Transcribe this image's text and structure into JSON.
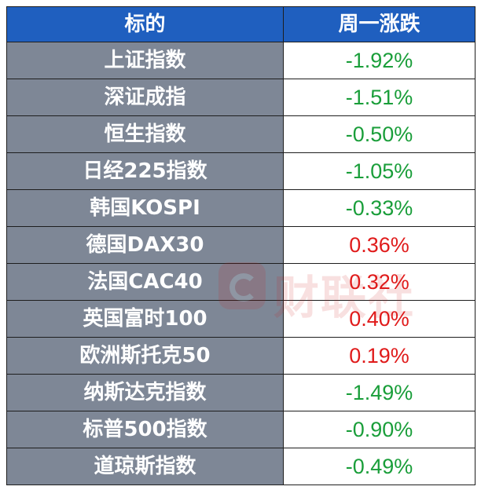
{
  "header": {
    "col_name": "标的",
    "col_change": "周一涨跌"
  },
  "rows": [
    {
      "name": "上证指数",
      "change": "-1.92%",
      "direction": "down"
    },
    {
      "name": "深证成指",
      "change": "-1.51%",
      "direction": "down"
    },
    {
      "name": "恒生指数",
      "change": "-0.50%",
      "direction": "down"
    },
    {
      "name": "日经225指数",
      "change": "-1.05%",
      "direction": "down"
    },
    {
      "name": "韩国KOSPI",
      "change": "-0.33%",
      "direction": "down"
    },
    {
      "name": "德国DAX30",
      "change": "0.36%",
      "direction": "up"
    },
    {
      "name": "法国CAC40",
      "change": "0.32%",
      "direction": "up"
    },
    {
      "name": "英国富时100",
      "change": "0.40%",
      "direction": "up"
    },
    {
      "name": "欧洲斯托克50",
      "change": "0.19%",
      "direction": "up"
    },
    {
      "name": "纳斯达克指数",
      "change": "-1.49%",
      "direction": "down"
    },
    {
      "name": "标普500指数",
      "change": "-0.90%",
      "direction": "down"
    },
    {
      "name": "道琼斯指数",
      "change": "-0.49%",
      "direction": "down"
    }
  ],
  "colors": {
    "header_bg": "#1f5fbf",
    "name_bg": "#7e8796",
    "down": "#1a9e3a",
    "up": "#e01b1b"
  },
  "watermark": {
    "text": "财联社",
    "icon": "cailianshe-logo-icon"
  }
}
